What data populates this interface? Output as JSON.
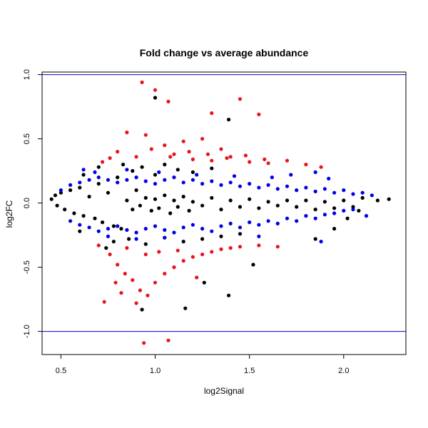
{
  "chart_data": {
    "type": "scatter",
    "title": "Fold change vs average abundance",
    "xlabel": "log2Signal",
    "ylabel": "log2FC",
    "xlim": [
      0.4,
      2.33
    ],
    "ylim": [
      -1.18,
      1.02
    ],
    "x_ticks": [
      {
        "value": 0.5,
        "label": "0.5"
      },
      {
        "value": 1.0,
        "label": "1.0"
      },
      {
        "value": 1.5,
        "label": "1.5"
      },
      {
        "value": 2.0,
        "label": "2.0"
      }
    ],
    "y_ticks": [
      {
        "value": -1.0,
        "label": "-1.0"
      },
      {
        "value": -0.5,
        "label": "-0.5"
      },
      {
        "value": 0.0,
        "label": "0.0"
      },
      {
        "value": 0.5,
        "label": "0.5"
      },
      {
        "value": 1.0,
        "label": "1.0"
      }
    ],
    "reference_lines": [
      {
        "axis": "y",
        "value": 1.0,
        "color": "#0000cd"
      },
      {
        "axis": "y",
        "value": -1.0,
        "color": "#0000cd"
      }
    ],
    "grid": false,
    "legend": "none",
    "series": [
      {
        "color": "#000000",
        "points": [
          [
            0.45,
            0.03
          ],
          [
            0.47,
            0.06
          ],
          [
            0.48,
            -0.02
          ],
          [
            0.5,
            0.08
          ],
          [
            0.52,
            -0.05
          ],
          [
            0.55,
            0.1
          ],
          [
            0.57,
            -0.08
          ],
          [
            0.6,
            0.12
          ],
          [
            0.62,
            -0.1
          ],
          [
            0.65,
            0.05
          ],
          [
            0.68,
            -0.12
          ],
          [
            0.7,
            0.15
          ],
          [
            0.72,
            -0.15
          ],
          [
            0.75,
            0.08
          ],
          [
            0.78,
            -0.18
          ],
          [
            0.8,
            0.2
          ],
          [
            0.82,
            -0.2
          ],
          [
            0.85,
            0.02
          ],
          [
            0.88,
            -0.05
          ],
          [
            0.9,
            0.1
          ],
          [
            0.92,
            -0.02
          ],
          [
            0.95,
            0.04
          ],
          [
            0.98,
            -0.06
          ],
          [
            1.0,
            0.03
          ],
          [
            1.02,
            -0.04
          ],
          [
            1.05,
            0.06
          ],
          [
            1.08,
            -0.08
          ],
          [
            1.1,
            0.02
          ],
          [
            1.12,
            -0.03
          ],
          [
            1.15,
            0.05
          ],
          [
            1.18,
            -0.06
          ],
          [
            1.2,
            0.01
          ],
          [
            1.25,
            -0.02
          ],
          [
            1.3,
            0.04
          ],
          [
            1.35,
            -0.05
          ],
          [
            1.4,
            0.02
          ],
          [
            1.45,
            -0.03
          ],
          [
            1.5,
            0.03
          ],
          [
            1.55,
            -0.04
          ],
          [
            1.6,
            0.01
          ],
          [
            1.65,
            -0.02
          ],
          [
            1.7,
            0.02
          ],
          [
            1.75,
            -0.03
          ],
          [
            1.8,
            0.02
          ],
          [
            1.85,
            -0.05
          ],
          [
            1.9,
            0.01
          ],
          [
            1.95,
            -0.04
          ],
          [
            2.0,
            0.02
          ],
          [
            2.05,
            -0.03
          ],
          [
            2.1,
            0.04
          ],
          [
            2.18,
            0.02
          ],
          [
            2.24,
            0.03
          ],
          [
            0.83,
            0.3
          ],
          [
            0.88,
            0.25
          ],
          [
            0.93,
            0.28
          ],
          [
            1.0,
            0.22
          ],
          [
            1.05,
            0.3
          ],
          [
            1.12,
            0.26
          ],
          [
            1.2,
            0.24
          ],
          [
            1.3,
            0.27
          ],
          [
            0.78,
            -0.3
          ],
          [
            0.86,
            -0.28
          ],
          [
            0.95,
            -0.32
          ],
          [
            1.05,
            -0.27
          ],
          [
            1.15,
            -0.3
          ],
          [
            1.25,
            -0.28
          ],
          [
            1.35,
            -0.26
          ],
          [
            1.45,
            -0.24
          ],
          [
            1.0,
            0.82
          ],
          [
            1.39,
            0.65
          ],
          [
            0.93,
            -0.83
          ],
          [
            1.16,
            -0.82
          ],
          [
            1.39,
            -0.72
          ],
          [
            1.26,
            -0.62
          ],
          [
            1.52,
            -0.48
          ],
          [
            1.85,
            -0.28
          ],
          [
            1.95,
            -0.2
          ],
          [
            2.02,
            -0.12
          ],
          [
            2.08,
            -0.06
          ],
          [
            0.62,
            0.22
          ],
          [
            0.6,
            -0.22
          ],
          [
            0.7,
            0.28
          ],
          [
            0.74,
            -0.35
          ]
        ]
      },
      {
        "color": "#e8141e",
        "points": [
          [
            0.93,
            0.94
          ],
          [
            1.0,
            0.88
          ],
          [
            1.07,
            0.79
          ],
          [
            1.45,
            0.81
          ],
          [
            1.3,
            0.7
          ],
          [
            1.55,
            0.69
          ],
          [
            0.85,
            0.55
          ],
          [
            0.95,
            0.53
          ],
          [
            1.05,
            0.45
          ],
          [
            1.15,
            0.48
          ],
          [
            1.25,
            0.5
          ],
          [
            1.35,
            0.42
          ],
          [
            0.8,
            0.4
          ],
          [
            0.9,
            0.36
          ],
          [
            1.1,
            0.38
          ],
          [
            1.2,
            0.34
          ],
          [
            1.3,
            0.33
          ],
          [
            1.4,
            0.36
          ],
          [
            1.5,
            0.32
          ],
          [
            1.6,
            0.31
          ],
          [
            1.7,
            0.33
          ],
          [
            1.8,
            0.3
          ],
          [
            1.88,
            0.28
          ],
          [
            0.72,
            0.32
          ],
          [
            0.76,
            0.35
          ],
          [
            0.98,
            0.42
          ],
          [
            1.08,
            0.36
          ],
          [
            1.18,
            0.4
          ],
          [
            1.28,
            0.38
          ],
          [
            1.38,
            0.35
          ],
          [
            1.48,
            0.37
          ],
          [
            1.58,
            0.34
          ],
          [
            0.7,
            -0.33
          ],
          [
            0.76,
            -0.4
          ],
          [
            0.8,
            -0.48
          ],
          [
            0.84,
            -0.55
          ],
          [
            0.88,
            -0.6
          ],
          [
            0.92,
            -0.68
          ],
          [
            0.96,
            -0.72
          ],
          [
            1.0,
            -0.62
          ],
          [
            1.05,
            -0.55
          ],
          [
            1.1,
            -0.5
          ],
          [
            1.15,
            -0.45
          ],
          [
            1.2,
            -0.42
          ],
          [
            1.25,
            -0.4
          ],
          [
            1.3,
            -0.38
          ],
          [
            1.35,
            -0.36
          ],
          [
            1.4,
            -0.35
          ],
          [
            1.45,
            -0.34
          ],
          [
            1.55,
            -0.33
          ],
          [
            1.65,
            -0.34
          ],
          [
            0.73,
            -0.77
          ],
          [
            0.9,
            -0.78
          ],
          [
            0.79,
            -0.62
          ],
          [
            0.85,
            -0.35
          ],
          [
            0.95,
            -0.4
          ],
          [
            1.02,
            -0.38
          ],
          [
            1.12,
            -0.37
          ],
          [
            0.94,
            -1.09
          ],
          [
            1.07,
            -1.07
          ],
          [
            1.22,
            -0.58
          ],
          [
            0.82,
            -0.7
          ]
        ]
      },
      {
        "color": "#0000e6",
        "points": [
          [
            0.5,
            0.1
          ],
          [
            0.55,
            0.14
          ],
          [
            0.6,
            0.16
          ],
          [
            0.65,
            0.18
          ],
          [
            0.7,
            0.2
          ],
          [
            0.75,
            0.18
          ],
          [
            0.8,
            0.16
          ],
          [
            0.85,
            0.18
          ],
          [
            0.9,
            0.2
          ],
          [
            0.95,
            0.17
          ],
          [
            1.0,
            0.15
          ],
          [
            1.05,
            0.18
          ],
          [
            1.1,
            0.2
          ],
          [
            1.15,
            0.16
          ],
          [
            1.2,
            0.18
          ],
          [
            1.25,
            0.15
          ],
          [
            1.3,
            0.17
          ],
          [
            1.35,
            0.14
          ],
          [
            1.4,
            0.16
          ],
          [
            1.45,
            0.13
          ],
          [
            1.5,
            0.15
          ],
          [
            1.55,
            0.12
          ],
          [
            1.6,
            0.14
          ],
          [
            1.65,
            0.11
          ],
          [
            1.7,
            0.13
          ],
          [
            1.75,
            0.1
          ],
          [
            1.8,
            0.12
          ],
          [
            1.85,
            0.09
          ],
          [
            1.9,
            0.11
          ],
          [
            1.95,
            0.08
          ],
          [
            2.0,
            0.1
          ],
          [
            2.05,
            0.07
          ],
          [
            2.1,
            0.08
          ],
          [
            2.15,
            0.06
          ],
          [
            0.62,
            0.26
          ],
          [
            0.68,
            0.24
          ],
          [
            0.85,
            0.26
          ],
          [
            1.02,
            0.24
          ],
          [
            1.22,
            0.22
          ],
          [
            1.42,
            0.21
          ],
          [
            1.62,
            0.2
          ],
          [
            1.72,
            0.22
          ],
          [
            1.85,
            0.24
          ],
          [
            1.92,
            0.19
          ],
          [
            0.55,
            -0.14
          ],
          [
            0.6,
            -0.17
          ],
          [
            0.65,
            -0.19
          ],
          [
            0.7,
            -0.22
          ],
          [
            0.75,
            -0.2
          ],
          [
            0.8,
            -0.18
          ],
          [
            0.85,
            -0.21
          ],
          [
            0.9,
            -0.23
          ],
          [
            0.95,
            -0.2
          ],
          [
            1.0,
            -0.18
          ],
          [
            1.05,
            -0.21
          ],
          [
            1.1,
            -0.23
          ],
          [
            1.15,
            -0.19
          ],
          [
            1.2,
            -0.17
          ],
          [
            1.25,
            -0.2
          ],
          [
            1.3,
            -0.22
          ],
          [
            1.35,
            -0.18
          ],
          [
            1.4,
            -0.16
          ],
          [
            1.45,
            -0.19
          ],
          [
            1.5,
            -0.15
          ],
          [
            1.55,
            -0.17
          ],
          [
            1.6,
            -0.14
          ],
          [
            1.65,
            -0.16
          ],
          [
            1.7,
            -0.12
          ],
          [
            1.75,
            -0.14
          ],
          [
            1.8,
            -0.1
          ],
          [
            1.85,
            -0.12
          ],
          [
            1.9,
            -0.09
          ],
          [
            1.95,
            -0.08
          ],
          [
            2.0,
            -0.06
          ],
          [
            2.05,
            -0.05
          ],
          [
            2.12,
            -0.1
          ],
          [
            1.88,
            -0.3
          ],
          [
            1.55,
            -0.26
          ],
          [
            0.75,
            -0.26
          ],
          [
            0.9,
            -0.28
          ],
          [
            1.05,
            -0.27
          ]
        ]
      }
    ]
  }
}
